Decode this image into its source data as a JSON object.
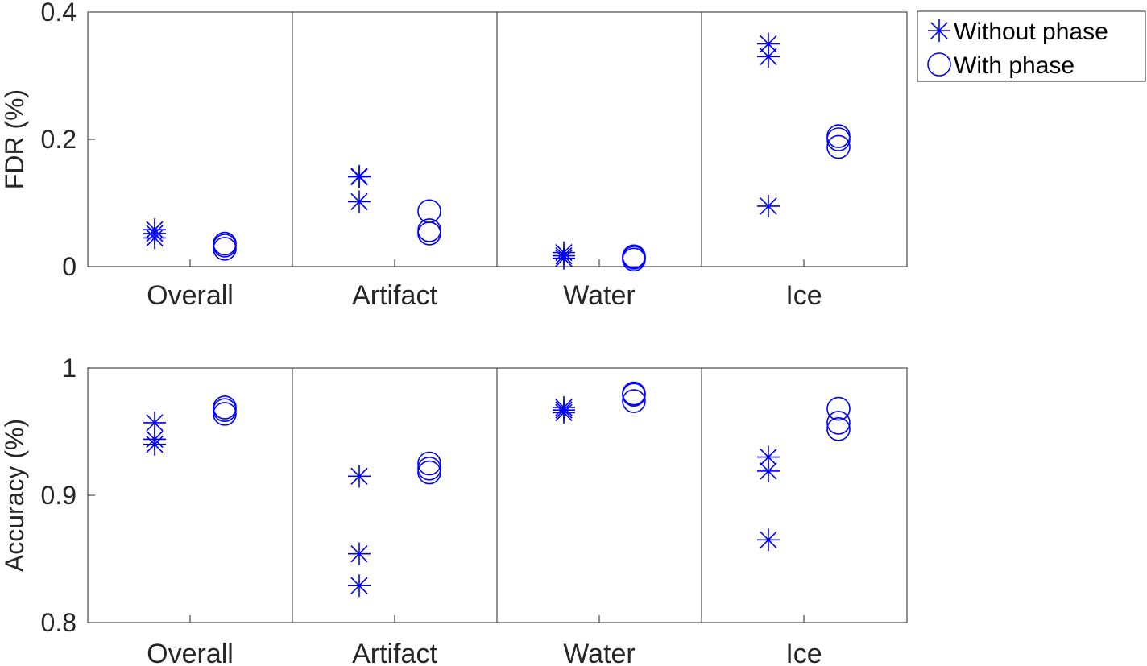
{
  "chart_data": [
    {
      "type": "scatter",
      "ylabel": "FDR (%)",
      "ylim": [
        0,
        0.4
      ],
      "yticks": [
        0,
        0.2,
        0.4
      ],
      "ytick_labels": [
        "0",
        "0.2",
        "0.4"
      ],
      "categories": [
        "Overall",
        "Artifact",
        "Water",
        "Ice"
      ],
      "series": [
        {
          "name": "Without phase",
          "marker": "asterisk",
          "values": [
            [
              0.058,
              0.052,
              0.045
            ],
            [
              0.142,
              0.141,
              0.102
            ],
            [
              0.022,
              0.017,
              0.013
            ],
            [
              0.35,
              0.33,
              0.095
            ]
          ]
        },
        {
          "name": "With phase",
          "marker": "circle",
          "values": [
            [
              0.036,
              0.033,
              0.028
            ],
            [
              0.087,
              0.057,
              0.052
            ],
            [
              0.016,
              0.014,
              0.011
            ],
            [
              0.205,
              0.2,
              0.188
            ]
          ]
        }
      ]
    },
    {
      "type": "scatter",
      "ylabel": "Accuracy (%)",
      "ylim": [
        0.8,
        1
      ],
      "yticks": [
        0.8,
        0.9,
        1
      ],
      "ytick_labels": [
        "0.8",
        "0.9",
        "1"
      ],
      "categories": [
        "Overall",
        "Artifact",
        "Water",
        "Ice"
      ],
      "series": [
        {
          "name": "Without phase",
          "marker": "asterisk",
          "values": [
            [
              0.957,
              0.944,
              0.94
            ],
            [
              0.915,
              0.854,
              0.829
            ],
            [
              0.969,
              0.967,
              0.965
            ],
            [
              0.93,
              0.919,
              0.865
            ]
          ]
        },
        {
          "name": "With phase",
          "marker": "circle",
          "values": [
            [
              0.969,
              0.967,
              0.964
            ],
            [
              0.925,
              0.921,
              0.918
            ],
            [
              0.98,
              0.979,
              0.974
            ],
            [
              0.968,
              0.957,
              0.952
            ]
          ]
        }
      ]
    }
  ],
  "legend": {
    "position": "top-right-outside",
    "entries": [
      {
        "label": "Without phase",
        "marker": "asterisk"
      },
      {
        "label": "With phase",
        "marker": "circle"
      }
    ]
  },
  "colors": {
    "marker": "#0000ff",
    "axis": "#262626",
    "divider": "#262626"
  }
}
